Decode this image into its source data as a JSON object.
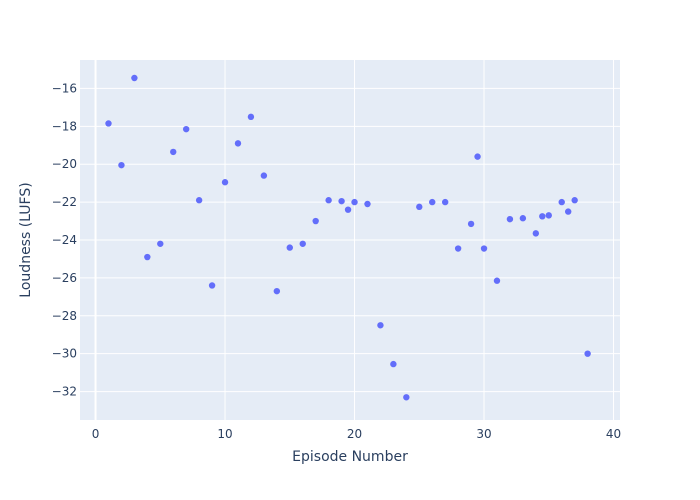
{
  "chart_data": {
    "type": "scatter",
    "title": "",
    "xlabel": "Episode Number",
    "ylabel": "Loudness (LUFS)",
    "xlim": [
      -1.2,
      40.5
    ],
    "ylim": [
      -33.5,
      -14.5
    ],
    "x_ticks": [
      0,
      10,
      20,
      30,
      40
    ],
    "y_ticks": [
      -32,
      -30,
      -28,
      -26,
      -24,
      -22,
      -20,
      -18,
      -16
    ],
    "grid": true,
    "legend": "none",
    "colors": {
      "plot_background": "#e5ecf6",
      "grid": "#ffffff",
      "marker": "#636efa",
      "text": "#2a3f5f"
    },
    "series": [
      {
        "x": [
          1,
          2,
          3,
          4,
          5,
          6,
          7,
          8,
          9,
          10,
          11,
          12,
          13,
          14,
          15,
          16,
          17,
          18,
          19,
          19.5,
          20,
          21,
          22,
          23,
          24,
          25,
          26,
          27,
          28,
          29,
          29.5,
          30,
          31,
          32,
          33,
          34,
          34.5,
          35,
          36,
          36.5,
          37,
          38
        ],
        "y": [
          -17.85,
          -20.05,
          -15.45,
          -24.9,
          -24.2,
          -19.35,
          -18.15,
          -21.9,
          -26.4,
          -20.95,
          -18.9,
          -17.5,
          -20.6,
          -26.7,
          -24.4,
          -24.2,
          -23.0,
          -21.9,
          -21.95,
          -22.4,
          -22.0,
          -22.1,
          -28.5,
          -30.55,
          -32.3,
          -22.25,
          -22.0,
          -22.0,
          -24.45,
          -23.15,
          -19.6,
          -24.45,
          -26.15,
          -22.9,
          -22.85,
          -23.65,
          -22.75,
          -22.7,
          -22.0,
          -22.5,
          -21.9,
          -30.0
        ]
      }
    ]
  }
}
